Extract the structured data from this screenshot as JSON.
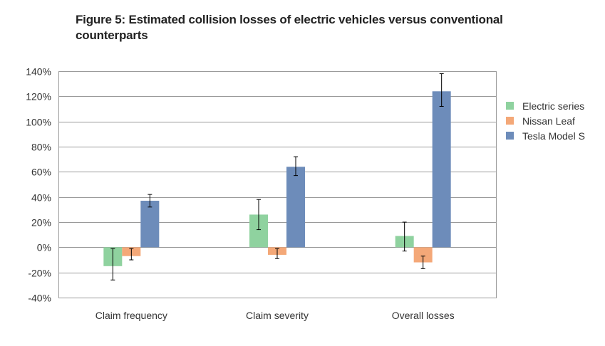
{
  "chart_data": {
    "type": "bar",
    "title": "Figure 5: Estimated collision losses of electric vehicles versus conventional counterparts",
    "categories": [
      "Claim frequency",
      "Claim severity",
      "Overall losses"
    ],
    "series": [
      {
        "name": "Electric series",
        "color": "#8fd29f",
        "values": [
          -15,
          26,
          9
        ],
        "err_low": [
          -26,
          14,
          -3
        ],
        "err_high": [
          -1,
          38,
          20
        ]
      },
      {
        "name": "Nissan Leaf",
        "color": "#f4a878",
        "values": [
          -7,
          -6,
          -12
        ],
        "err_low": [
          -10,
          -9,
          -17
        ],
        "err_high": [
          -1,
          -1,
          -7
        ]
      },
      {
        "name": "Tesla Model S",
        "color": "#6d8cba",
        "values": [
          37,
          64,
          124
        ],
        "err_low": [
          32,
          57,
          112
        ],
        "err_high": [
          42,
          72,
          138
        ]
      }
    ],
    "ylim": [
      -40,
      140
    ],
    "yticks": [
      -40,
      -20,
      0,
      20,
      40,
      60,
      80,
      100,
      120,
      140
    ],
    "ytick_labels": [
      "-40%",
      "-20%",
      "0%",
      "20%",
      "40%",
      "60%",
      "80%",
      "100%",
      "120%",
      "140%"
    ],
    "grid": true,
    "legend_position": "right",
    "error_bars": true
  }
}
